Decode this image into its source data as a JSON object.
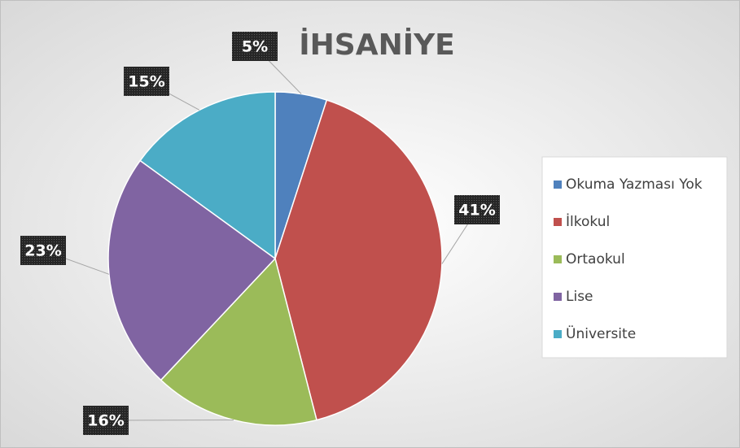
{
  "chart_data": {
    "type": "pie",
    "title": "İHSANİYE",
    "categories": [
      "Okuma Yazması Yok",
      "İlkokul",
      "Ortaokul",
      "Lise",
      "Üniversite"
    ],
    "values": [
      5,
      41,
      16,
      23,
      15
    ],
    "value_labels": [
      "5%",
      "41%",
      "16%",
      "23%",
      "15%"
    ],
    "colors": [
      "#4f81bd",
      "#c0504d",
      "#9bbb59",
      "#8064a2",
      "#4bacc6"
    ],
    "legend": "right"
  }
}
